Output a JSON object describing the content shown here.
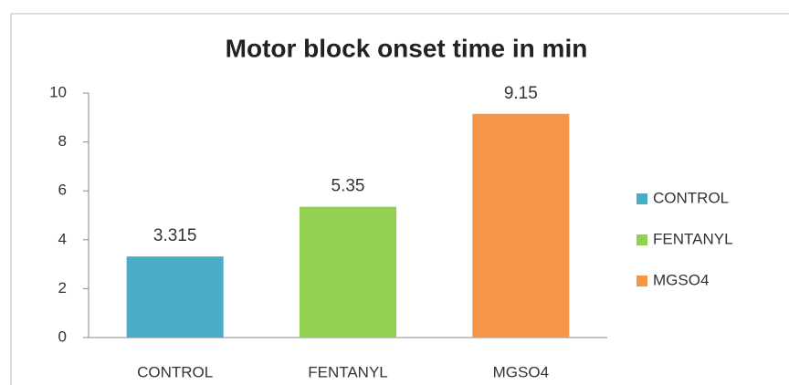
{
  "chart_data": {
    "type": "bar",
    "title": "Motor block onset time in min",
    "categories": [
      "CONTROL",
      "FENTANYL",
      "MGSO4"
    ],
    "values": [
      3.315,
      5.35,
      9.15
    ],
    "colors": [
      "#4bacc6",
      "#92d050",
      "#f79646"
    ],
    "ylim": [
      0,
      10
    ],
    "yticks": [
      0,
      2,
      4,
      6,
      8,
      10
    ],
    "grid": false,
    "legend": "right"
  }
}
